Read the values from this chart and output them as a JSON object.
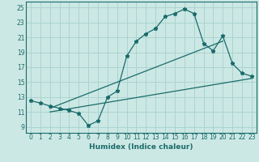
{
  "title": "",
  "xlabel": "Humidex (Indice chaleur)",
  "xlim": [
    -0.5,
    23.5
  ],
  "ylim": [
    8.2,
    25.8
  ],
  "xticks": [
    0,
    1,
    2,
    3,
    4,
    5,
    6,
    7,
    8,
    9,
    10,
    11,
    12,
    13,
    14,
    15,
    16,
    17,
    18,
    19,
    20,
    21,
    22,
    23
  ],
  "yticks": [
    9,
    11,
    13,
    15,
    17,
    19,
    21,
    23,
    25
  ],
  "bg_color": "#cce8e4",
  "line_color": "#1a6b6b",
  "grid_color": "#aad4d0",
  "main_x": [
    0,
    1,
    2,
    3,
    4,
    5,
    6,
    7,
    8,
    9,
    10,
    11,
    12,
    13,
    14,
    15,
    16,
    17,
    18,
    19,
    20,
    21,
    22,
    23
  ],
  "main_y": [
    12.5,
    12.2,
    11.8,
    11.5,
    11.2,
    10.8,
    9.2,
    9.8,
    13.0,
    13.8,
    18.5,
    20.5,
    21.5,
    22.2,
    23.8,
    24.2,
    24.8,
    24.2,
    20.2,
    19.2,
    21.2,
    17.5,
    16.2,
    15.8
  ],
  "upper_line_x": [
    2,
    20
  ],
  "upper_line_y": [
    11.5,
    20.5
  ],
  "lower_line_x": [
    2,
    23
  ],
  "lower_line_y": [
    11.0,
    15.5
  ]
}
